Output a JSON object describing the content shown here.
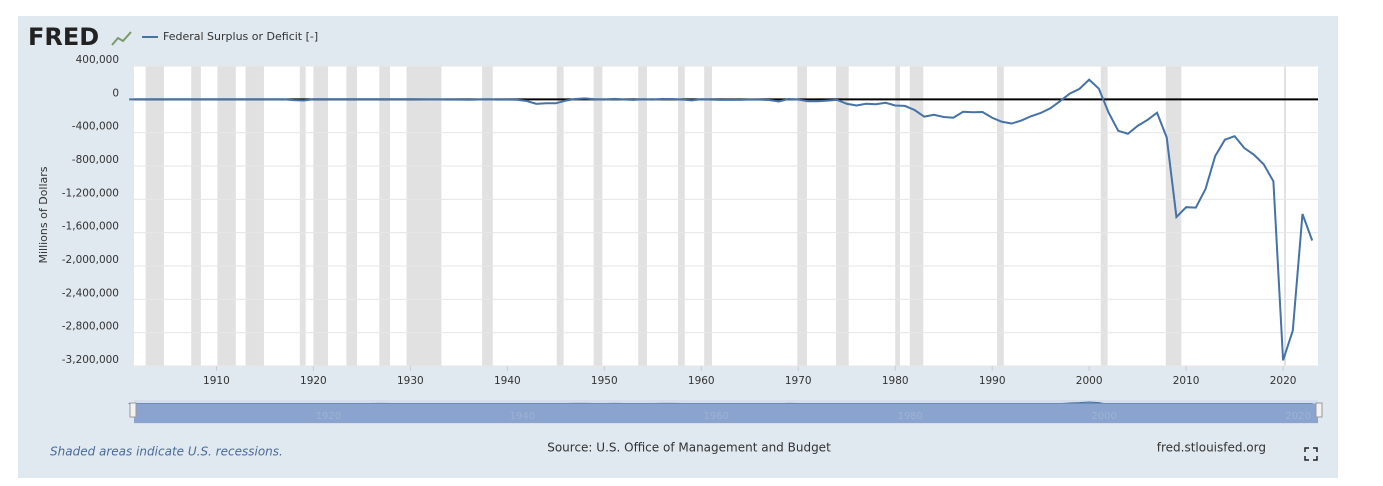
{
  "chart_data": {
    "type": "line",
    "logo": "FRED",
    "y_label": "Millions of Dollars",
    "note": "Shaded areas indicate U.S. recessions.",
    "source": "Source: U.S. Office of Management and Budget",
    "site": "fred.stlouisfed.org",
    "x": [
      1901,
      1902,
      1903,
      1904,
      1905,
      1906,
      1907,
      1908,
      1909,
      1910,
      1911,
      1912,
      1913,
      1914,
      1915,
      1916,
      1917,
      1918,
      1919,
      1920,
      1921,
      1922,
      1923,
      1924,
      1925,
      1926,
      1927,
      1928,
      1929,
      1930,
      1931,
      1932,
      1933,
      1934,
      1935,
      1936,
      1937,
      1938,
      1939,
      1940,
      1941,
      1942,
      1943,
      1944,
      1945,
      1946,
      1947,
      1948,
      1949,
      1950,
      1951,
      1952,
      1953,
      1954,
      1955,
      1956,
      1957,
      1958,
      1959,
      1960,
      1961,
      1962,
      1963,
      1964,
      1965,
      1966,
      1967,
      1968,
      1969,
      1970,
      1971,
      1972,
      1973,
      1974,
      1975,
      1976,
      1977,
      1978,
      1979,
      1980,
      1981,
      1982,
      1983,
      1984,
      1985,
      1986,
      1987,
      1988,
      1989,
      1990,
      1991,
      1992,
      1993,
      1994,
      1995,
      1996,
      1997,
      1998,
      1999,
      2000,
      2001,
      2002,
      2003,
      2004,
      2005,
      2006,
      2007,
      2008,
      2009,
      2010,
      2011,
      2012,
      2013,
      2014,
      2015,
      2016,
      2017,
      2018,
      2019,
      2020,
      2021,
      2022,
      2023
    ],
    "series": [
      {
        "name": "Federal Surplus or Deficit [-]",
        "color": "#4572a7",
        "values": [
          63,
          77,
          45,
          -43,
          -23,
          25,
          87,
          -57,
          -89,
          -18,
          11,
          3,
          0,
          0,
          -63,
          48,
          -853,
          -9032,
          -13363,
          291,
          509,
          736,
          713,
          963,
          717,
          865,
          1155,
          939,
          734,
          738,
          -462,
          -2735,
          -2602,
          -3586,
          -2803,
          -4304,
          -2193,
          -89,
          -2846,
          -2920,
          -4941,
          -20503,
          -54554,
          -47557,
          -47553,
          -15936,
          4018,
          11796,
          580,
          -3119,
          6102,
          -1519,
          -6493,
          -1154,
          -2993,
          3947,
          3412,
          -2769,
          -12849,
          301,
          -3335,
          -7146,
          -4756,
          -5915,
          -1411,
          -3698,
          -8643,
          -25161,
          3242,
          -2842,
          -23033,
          -23373,
          -14908,
          -6135,
          -53242,
          -73732,
          -53659,
          -59185,
          -40726,
          -73830,
          -78968,
          -127977,
          -207802,
          -185367,
          -212308,
          -221227,
          -149730,
          -155178,
          -152639,
          -221036,
          -269238,
          -290321,
          -255051,
          -203186,
          -163952,
          -107431,
          -21884,
          69270,
          125610,
          236241,
          128236,
          -157758,
          -377585,
          -412727,
          -318346,
          -248181,
          -160701,
          -458553,
          -1412688,
          -1294373,
          -1299593,
          -1076573,
          -679775,
          -484793,
          -441960,
          -584651,
          -665446,
          -779137,
          -983594,
          -3132460,
          -2775321,
          -1375935,
          -1694000
        ]
      }
    ],
    "xlim": [
      1901.5,
      2023.6
    ],
    "xticks": [
      1910,
      1920,
      1930,
      1940,
      1950,
      1960,
      1970,
      1980,
      1990,
      2000,
      2010,
      2020
    ],
    "ylim": [
      -3200000,
      400000
    ],
    "yticks": [
      {
        "value": 400000,
        "label": "400,000"
      },
      0,
      {
        "value": -400000,
        "label": "-400,000"
      },
      {
        "value": -800000,
        "label": "-800,000"
      },
      {
        "value": -1200000,
        "label": "-1,200,000"
      },
      {
        "value": -1600000,
        "label": "-1,600,000"
      },
      {
        "value": -2000000,
        "label": "-2,000,000"
      },
      {
        "value": -2400000,
        "label": "-2,400,000"
      },
      {
        "value": -2800000,
        "label": "-2,800,000"
      },
      {
        "value": -3200000,
        "label": "-3,200,000"
      }
    ],
    "grid": true,
    "zero_line": 0,
    "recessions": [
      [
        1902.7,
        1904.6
      ],
      [
        1907.4,
        1908.4
      ],
      [
        1910.1,
        1912
      ],
      [
        1913,
        1914.9
      ],
      [
        1918.6,
        1919.2
      ],
      [
        1920,
        1921.5
      ],
      [
        1923.4,
        1924.5
      ],
      [
        1926.8,
        1927.9
      ],
      [
        1929.6,
        1933.2
      ],
      [
        1937.4,
        1938.5
      ],
      [
        1945.1,
        1945.8
      ],
      [
        1948.9,
        1949.8
      ],
      [
        1953.5,
        1954.4
      ],
      [
        1957.6,
        1958.3
      ],
      [
        1960.3,
        1961.1
      ],
      [
        1969.9,
        1970.9
      ],
      [
        1973.9,
        1975.2
      ],
      [
        1980,
        1980.5
      ],
      [
        1981.5,
        1982.9
      ],
      [
        1990.5,
        1991.2
      ],
      [
        2001.2,
        2001.9
      ],
      [
        2007.9,
        2009.5
      ],
      [
        2020.1,
        2020.3
      ]
    ],
    "navigator_ticks": [
      1920,
      1940,
      1960,
      1980,
      2000,
      2020
    ]
  }
}
